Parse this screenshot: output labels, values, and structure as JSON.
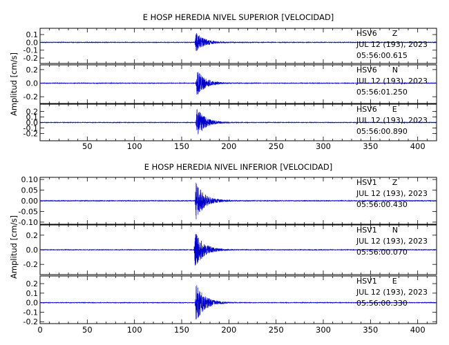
{
  "chart_data": [
    {
      "type": "line",
      "title": "E HOSP HEREDIA NIVEL SUPERIOR [VELOCIDAD]",
      "ylabel": "Amplitud [cm/s]",
      "xlabel": "",
      "xlim": [
        0,
        420
      ],
      "xticks": [
        "50",
        "100",
        "150",
        "200",
        "250",
        "300",
        "350",
        "400"
      ],
      "grid": false,
      "line_color": "#0000cc",
      "panels": [
        {
          "station": "HSV6",
          "component": "Z",
          "date_line": "JUL 12 (193), 2023",
          "time_line": "05:56:00.615",
          "ylim": [
            -0.27,
            0.18
          ],
          "yticks": [
            "0.1",
            "0.0",
            "-0.1",
            "-0.2"
          ],
          "peak_time": 166,
          "peak_amplitude": 0.14,
          "noise_amplitude": 0.004
        },
        {
          "station": "HSV6",
          "component": "N",
          "date_line": "JUL 12 (193), 2023",
          "time_line": "05:56:01.250",
          "ylim": [
            -0.3,
            0.27
          ],
          "yticks": [
            "0.2",
            "0.0",
            "-0.2"
          ],
          "peak_time": 167,
          "peak_amplitude": 0.22,
          "noise_amplitude": 0.004
        },
        {
          "station": "HSV6",
          "component": "E",
          "date_line": "JUL 12 (193), 2023",
          "time_line": "05:56:00.890",
          "ylim": [
            -0.33,
            0.33
          ],
          "yticks": [
            "0.2",
            "0.1",
            "0.0",
            "-0.1",
            "-0.2"
          ],
          "peak_time": 167,
          "peak_amplitude": 0.3,
          "noise_amplitude": 0.005
        }
      ]
    },
    {
      "type": "line",
      "title": "E HOSP HEREDIA NIVEL INFERIOR [VELOCIDAD]",
      "ylabel": "Amplitud [cm/s]",
      "xlabel": "",
      "xlim": [
        0,
        420
      ],
      "xticks": [
        "0",
        "50",
        "100",
        "150",
        "200",
        "250",
        "300",
        "350",
        "400"
      ],
      "grid": false,
      "line_color": "#0000cc",
      "panels": [
        {
          "station": "HSV1",
          "component": "Z",
          "date_line": "JUL 12 (193), 2023",
          "time_line": "05:56:00.430",
          "ylim": [
            -0.11,
            0.11
          ],
          "yticks": [
            "0.10",
            "0.05",
            "0.00",
            "-0.05",
            "-0.10"
          ],
          "peak_time": 166,
          "peak_amplitude": 0.1,
          "noise_amplitude": 0.002
        },
        {
          "station": "HSV1",
          "component": "N",
          "date_line": "JUL 12 (193), 2023",
          "time_line": "05:56:00.070",
          "ylim": [
            -0.34,
            0.34
          ],
          "yticks": [
            "0.2",
            "0.0",
            "-0.2"
          ],
          "peak_time": 165,
          "peak_amplitude": 0.3,
          "noise_amplitude": 0.004
        },
        {
          "station": "HSV1",
          "component": "E",
          "date_line": "JUL 12 (193), 2023",
          "time_line": "05:56:00.330",
          "ylim": [
            -0.22,
            0.28
          ],
          "yticks": [
            "0.2",
            "0.1",
            "0.0",
            "-0.1",
            "-0.2"
          ],
          "peak_time": 166,
          "peak_amplitude": 0.24,
          "noise_amplitude": 0.003
        }
      ]
    }
  ]
}
